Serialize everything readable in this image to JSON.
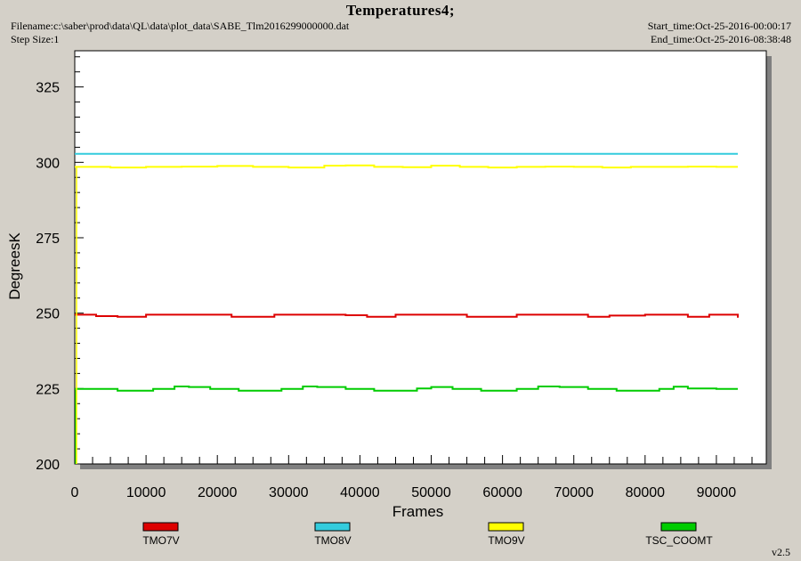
{
  "header": {
    "title": "Temperatures4;",
    "filename": "Filename:c:\\saber\\prod\\data\\QL\\data\\plot_data\\SABE_Tlm2016299000000.dat",
    "step_size": "Step Size:1",
    "start_time": "Start_time:Oct-25-2016-00:00:17",
    "end_time": "End_time:Oct-25-2016-08:38:48"
  },
  "version": "v2.5",
  "colors": {
    "background": "#d4d0c8",
    "plot_area": "#ffffff",
    "TMO7V": "#dd0000",
    "TMO8V": "#33ccdd",
    "TMO9V": "#ffff00",
    "TSC_COOMT": "#00cc00"
  },
  "chart_data": {
    "type": "line",
    "title": "Temperatures4;",
    "xlabel": "Frames",
    "ylabel": "DegreesK",
    "xlim": [
      0,
      97000
    ],
    "ylim": [
      200,
      337
    ],
    "x_ticks": [
      0,
      10000,
      20000,
      30000,
      40000,
      50000,
      60000,
      70000,
      80000,
      90000
    ],
    "y_ticks": [
      200,
      225,
      250,
      275,
      300,
      325
    ],
    "grid": false,
    "legend_position": "bottom",
    "series": [
      {
        "name": "TMO7V",
        "color": "#dd0000",
        "x": [
          0,
          2000,
          3000,
          6000,
          10000,
          14000,
          22000,
          28000,
          32000,
          38000,
          41000,
          45000,
          49000,
          52000,
          55000,
          58000,
          62000,
          66000,
          68000,
          72000,
          75000,
          80000,
          84000,
          86000,
          89000,
          91000,
          93000
        ],
        "values": [
          249.5,
          249.5,
          249.0,
          248.8,
          249.5,
          249.5,
          248.8,
          249.5,
          249.5,
          249.3,
          248.8,
          249.5,
          249.5,
          249.5,
          248.8,
          248.8,
          249.5,
          249.5,
          249.5,
          248.8,
          249.2,
          249.5,
          249.5,
          248.8,
          249.5,
          249.5,
          248.5
        ]
      },
      {
        "name": "TMO8V",
        "color": "#33ccdd",
        "x": [
          0,
          93000
        ],
        "values": [
          302.8,
          302.8
        ]
      },
      {
        "name": "TMO9V",
        "color": "#ffff00",
        "x": [
          0,
          5000,
          10000,
          15000,
          20000,
          25000,
          30000,
          35000,
          38000,
          42000,
          46000,
          50000,
          54000,
          58000,
          62000,
          66000,
          70000,
          74000,
          78000,
          82000,
          86000,
          90000,
          93000
        ],
        "values": [
          298.5,
          298.3,
          298.5,
          298.6,
          298.8,
          298.5,
          298.3,
          298.9,
          299.0,
          298.5,
          298.4,
          298.9,
          298.5,
          298.3,
          298.5,
          298.6,
          298.5,
          298.3,
          298.5,
          298.5,
          298.6,
          298.5,
          298.5
        ]
      },
      {
        "name": "TSC_COOMT",
        "color": "#00cc00",
        "x": [
          0,
          4000,
          6000,
          9000,
          11000,
          14000,
          16000,
          19000,
          23000,
          27000,
          29000,
          32000,
          34000,
          38000,
          42000,
          45000,
          48000,
          50000,
          53000,
          57000,
          62000,
          65000,
          68000,
          72000,
          76000,
          80000,
          82000,
          84000,
          86000,
          90000,
          93000
        ],
        "values": [
          224.9,
          224.9,
          224.3,
          224.3,
          224.9,
          225.7,
          225.5,
          224.9,
          224.3,
          224.3,
          224.9,
          225.7,
          225.5,
          224.9,
          224.3,
          224.3,
          225.0,
          225.5,
          224.9,
          224.3,
          224.9,
          225.7,
          225.5,
          224.9,
          224.3,
          224.3,
          224.9,
          225.6,
          225.0,
          224.9,
          224.9
        ]
      }
    ]
  }
}
